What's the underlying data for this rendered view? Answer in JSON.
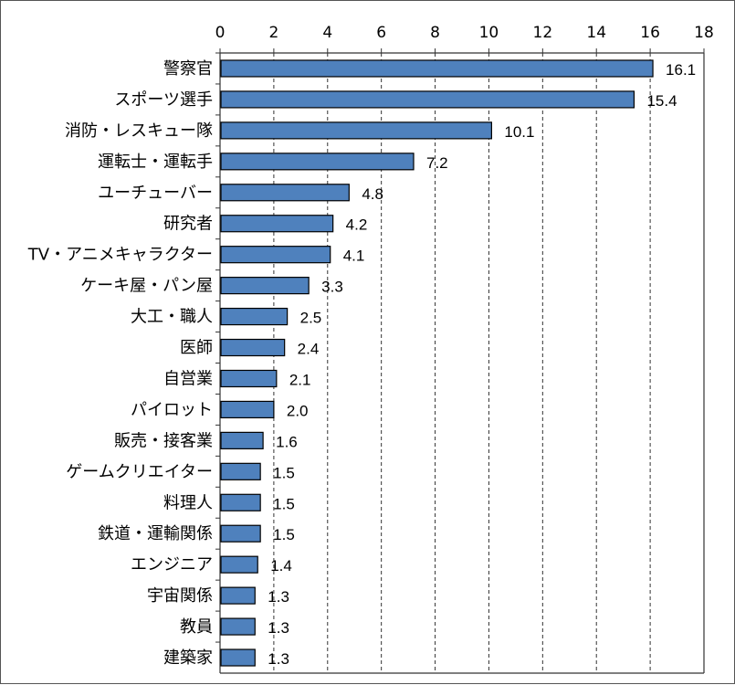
{
  "chart_data": {
    "type": "bar",
    "orientation": "horizontal",
    "categories": [
      "警察官",
      "スポーツ選手",
      "消防・レスキュー隊",
      "運転士・運転手",
      "ユーチューバー",
      "研究者",
      "TV・アニメキャラクター",
      "ケーキ屋・パン屋",
      "大工・職人",
      "医師",
      "自営業",
      "パイロット",
      "販売・接客業",
      "ゲームクリエイター",
      "料理人",
      "鉄道・運輸関係",
      "エンジニア",
      "宇宙関係",
      "教員",
      "建築家"
    ],
    "values": [
      16.1,
      15.4,
      10.1,
      7.2,
      4.8,
      4.2,
      4.1,
      3.3,
      2.5,
      2.4,
      2.1,
      2.0,
      1.6,
      1.5,
      1.5,
      1.5,
      1.4,
      1.3,
      1.3,
      1.3
    ],
    "value_labels": [
      "16.1",
      "15.4",
      "10.1",
      "7.2",
      "4.8",
      "4.2",
      "4.1",
      "3.3",
      "2.5",
      "2.4",
      "2.1",
      "2.0",
      "1.6",
      "1.5",
      "1.5",
      "1.5",
      "1.4",
      "1.3",
      "1.3",
      "1.3"
    ],
    "xlim": [
      0,
      18
    ],
    "x_ticks": [
      "0",
      "2",
      "4",
      "6",
      "8",
      "10",
      "12",
      "14",
      "16",
      "18"
    ],
    "x_axis_position": "top",
    "grid": "vertical dashed",
    "legend": "none",
    "bar_color": "#4f81bd",
    "bar_edge_color": "#000000",
    "title": "",
    "xlabel": "",
    "ylabel": ""
  }
}
